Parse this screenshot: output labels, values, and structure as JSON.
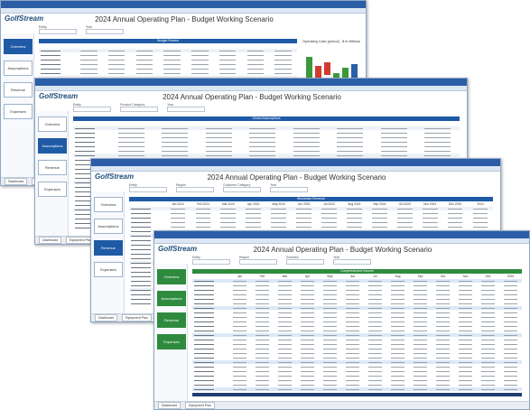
{
  "windows": [
    {
      "logo": "GolfStream",
      "title": "2024 Annual Operating Plan - Budget Working Scenario",
      "accent": "#1f5aa6",
      "nav": [
        "Overview",
        "Assumptions",
        "Revenue",
        "Expenses"
      ],
      "active": 0,
      "filters": [
        "Entity",
        "Year"
      ],
      "section": "Budget Review",
      "chart_title": "Operating Cash (period) - $ in Millions",
      "tabs": [
        "Dashboard",
        "Equipment Plan"
      ]
    },
    {
      "logo": "GolfStream",
      "title": "2024 Annual Operating Plan - Budget Working Scenario",
      "accent": "#1f5aa6",
      "nav": [
        "Overview",
        "Assumptions",
        "Revenue",
        "Expenses"
      ],
      "active": 1,
      "filters": [
        "Entity",
        "Product Category",
        "Year"
      ],
      "section": "Global Assumptions",
      "tabs": [
        "Dashboard",
        "Equipment Plan"
      ]
    },
    {
      "logo": "GolfStream",
      "title": "2024 Annual Operating Plan - Budget Working Scenario",
      "accent": "#1f5aa6",
      "nav": [
        "Overview",
        "Assumptions",
        "Revenue",
        "Expenses"
      ],
      "active": 2,
      "filters": [
        "Entity",
        "Region",
        "Customer Category",
        "Year"
      ],
      "section": "Wholesale Revenue",
      "months": [
        "Jan 2024",
        "Feb 2024",
        "Mar 2024",
        "Apr 2024",
        "May 2024",
        "Jun 2024",
        "Jul 2024",
        "Aug 2024",
        "Sep 2024",
        "Oct 2024",
        "Nov 2024",
        "Dec 2024",
        "2024"
      ],
      "tabs": [
        "Dashboard",
        "Equipment Plan"
      ]
    },
    {
      "logo": "GolfStream",
      "title": "2024 Annual Operating Plan - Budget Working Scenario",
      "accent": "#2e8b3e",
      "nav": [
        "Overview",
        "Assumptions",
        "Revenue",
        "Expenses"
      ],
      "active": -1,
      "filters": [
        "Entity",
        "Region",
        "Scenario",
        "Year"
      ],
      "section": "Comprehensive Income",
      "months": [
        "Jan",
        "Feb",
        "Mar",
        "Apr",
        "May",
        "Jun",
        "Jul",
        "Aug",
        "Sep",
        "Oct",
        "Nov",
        "Dec",
        "2024"
      ],
      "tabs": [
        "Dashboard",
        "Equipment Plan"
      ]
    }
  ]
}
